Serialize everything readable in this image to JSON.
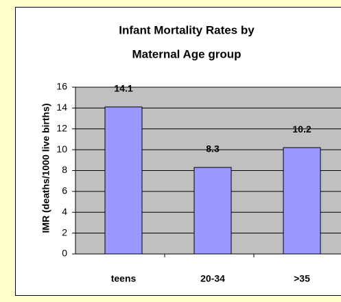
{
  "chart_data": {
    "type": "bar",
    "title": [
      "Infant Mortality Rates by",
      "Maternal Age group"
    ],
    "y_label": "IMR (deaths/1000 live births)",
    "categories": [
      "teens",
      "20-34",
      ">35"
    ],
    "values": [
      14.1,
      8.3,
      10.2
    ],
    "color": "#9999ff",
    "ylim": [
      0,
      16
    ],
    "yticks": [
      0,
      2,
      4,
      6,
      8,
      10,
      12,
      14,
      16
    ],
    "grid": true
  }
}
